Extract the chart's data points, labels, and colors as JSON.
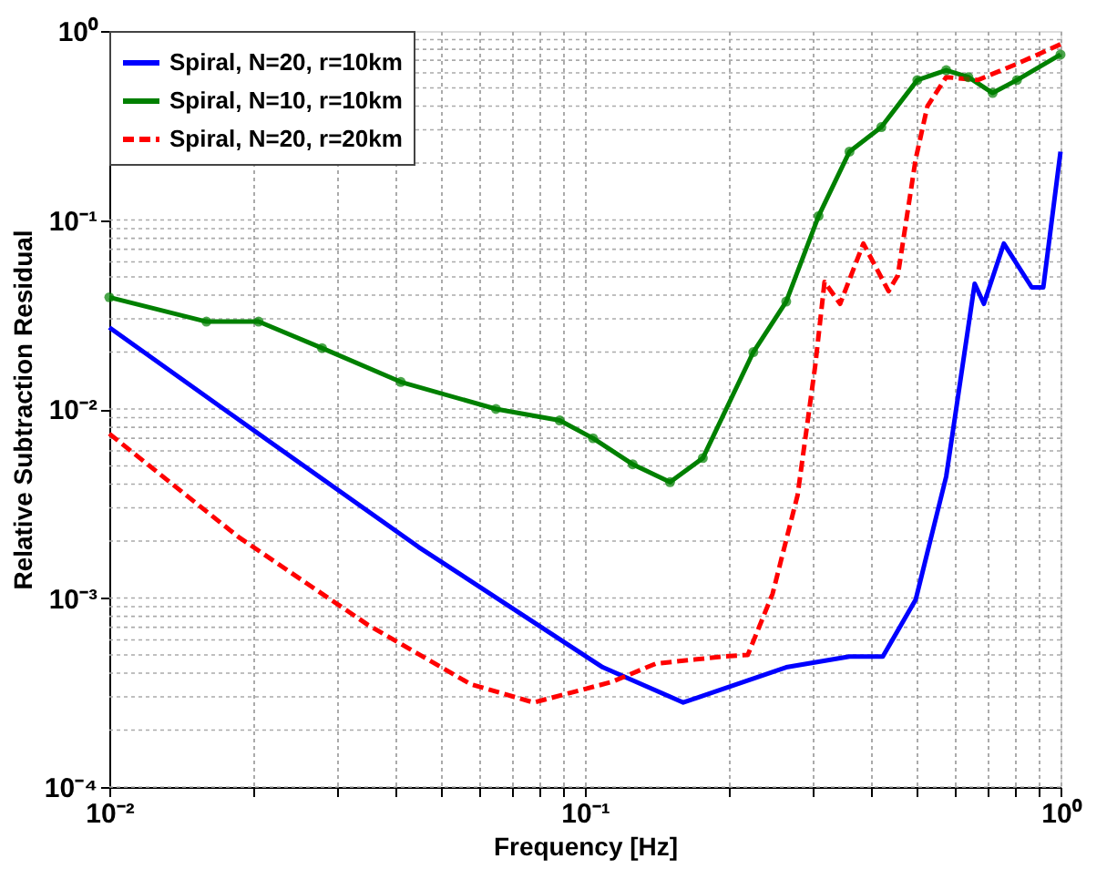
{
  "chart_data": {
    "type": "line",
    "xlabel": "Frequency [Hz]",
    "ylabel": "Relative Subtraction Residual",
    "log": "xy",
    "grid": true,
    "legend": "top left",
    "xlim": [
      0.01,
      1
    ],
    "ylim": [
      0.0001,
      1
    ],
    "xticks": [
      {
        "value": 0.01,
        "label": "10⁻²"
      },
      {
        "value": 0.02,
        "label": null
      },
      {
        "value": 0.03,
        "label": null
      },
      {
        "value": 0.04,
        "label": null
      },
      {
        "value": 0.05,
        "label": null
      },
      {
        "value": 0.06,
        "label": null
      },
      {
        "value": 0.07,
        "label": null
      },
      {
        "value": 0.08,
        "label": null
      },
      {
        "value": 0.09,
        "label": null
      },
      {
        "value": 0.1,
        "label": "10⁻¹"
      },
      {
        "value": 0.2,
        "label": null
      },
      {
        "value": 0.3,
        "label": null
      },
      {
        "value": 0.4,
        "label": null
      },
      {
        "value": 0.5,
        "label": null
      },
      {
        "value": 0.6,
        "label": null
      },
      {
        "value": 0.7,
        "label": null
      },
      {
        "value": 0.8,
        "label": null
      },
      {
        "value": 0.9,
        "label": null
      },
      {
        "value": 1,
        "label": "10⁰"
      }
    ],
    "yticks": [
      {
        "value": 0.0001,
        "label": "10⁻⁴"
      },
      {
        "value": 0.001,
        "label": "10⁻³"
      },
      {
        "value": 0.01,
        "label": "10⁻²"
      },
      {
        "value": 0.1,
        "label": "10⁻¹"
      },
      {
        "value": 1,
        "label": "10⁰"
      }
    ],
    "series": [
      {
        "name": "Spiral, N=20, r=10km",
        "color": "#0000ff",
        "line_style": "solid",
        "marker": "none",
        "x": [
          0.01,
          0.0193,
          0.0447,
          0.109,
          0.161,
          0.265,
          0.36,
          0.423,
          0.496,
          0.575,
          0.66,
          0.69,
          0.76,
          0.87,
          0.92,
          1.0
        ],
        "values": [
          0.027,
          0.0083,
          0.00186,
          0.00043,
          0.00028,
          0.00043,
          0.00049,
          0.00049,
          0.00098,
          0.0044,
          0.046,
          0.036,
          0.075,
          0.044,
          0.044,
          0.23
        ]
      },
      {
        "name": "Spiral, N=10, r=10km",
        "color": "#008000",
        "line_style": "solid",
        "marker": "circle",
        "x": [
          0.01,
          0.016,
          0.0206,
          0.028,
          0.041,
          0.065,
          0.0885,
          0.104,
          0.126,
          0.151,
          0.177,
          0.226,
          0.265,
          0.31,
          0.36,
          0.42,
          0.5,
          0.575,
          0.64,
          0.72,
          0.81,
          1.0
        ],
        "values": [
          0.039,
          0.029,
          0.029,
          0.021,
          0.0139,
          0.01,
          0.0087,
          0.007,
          0.0051,
          0.0041,
          0.0055,
          0.02,
          0.037,
          0.105,
          0.23,
          0.31,
          0.55,
          0.62,
          0.57,
          0.47,
          0.55,
          0.75
        ]
      },
      {
        "name": "Spiral, N=20, r=20km",
        "color": "#ff0000",
        "line_style": "dashed",
        "marker": "none",
        "x": [
          0.01,
          0.0187,
          0.035,
          0.0575,
          0.078,
          0.114,
          0.141,
          0.195,
          0.22,
          0.248,
          0.28,
          0.305,
          0.319,
          0.344,
          0.385,
          0.435,
          0.455,
          0.496,
          0.525,
          0.575,
          0.67,
          0.81,
          1.0
        ],
        "values": [
          0.0074,
          0.0021,
          0.00072,
          0.00035,
          0.00028,
          0.00036,
          0.00045,
          0.00049,
          0.0005,
          0.00105,
          0.0035,
          0.017,
          0.047,
          0.036,
          0.075,
          0.042,
          0.051,
          0.21,
          0.4,
          0.57,
          0.55,
          0.67,
          0.85
        ]
      }
    ]
  }
}
